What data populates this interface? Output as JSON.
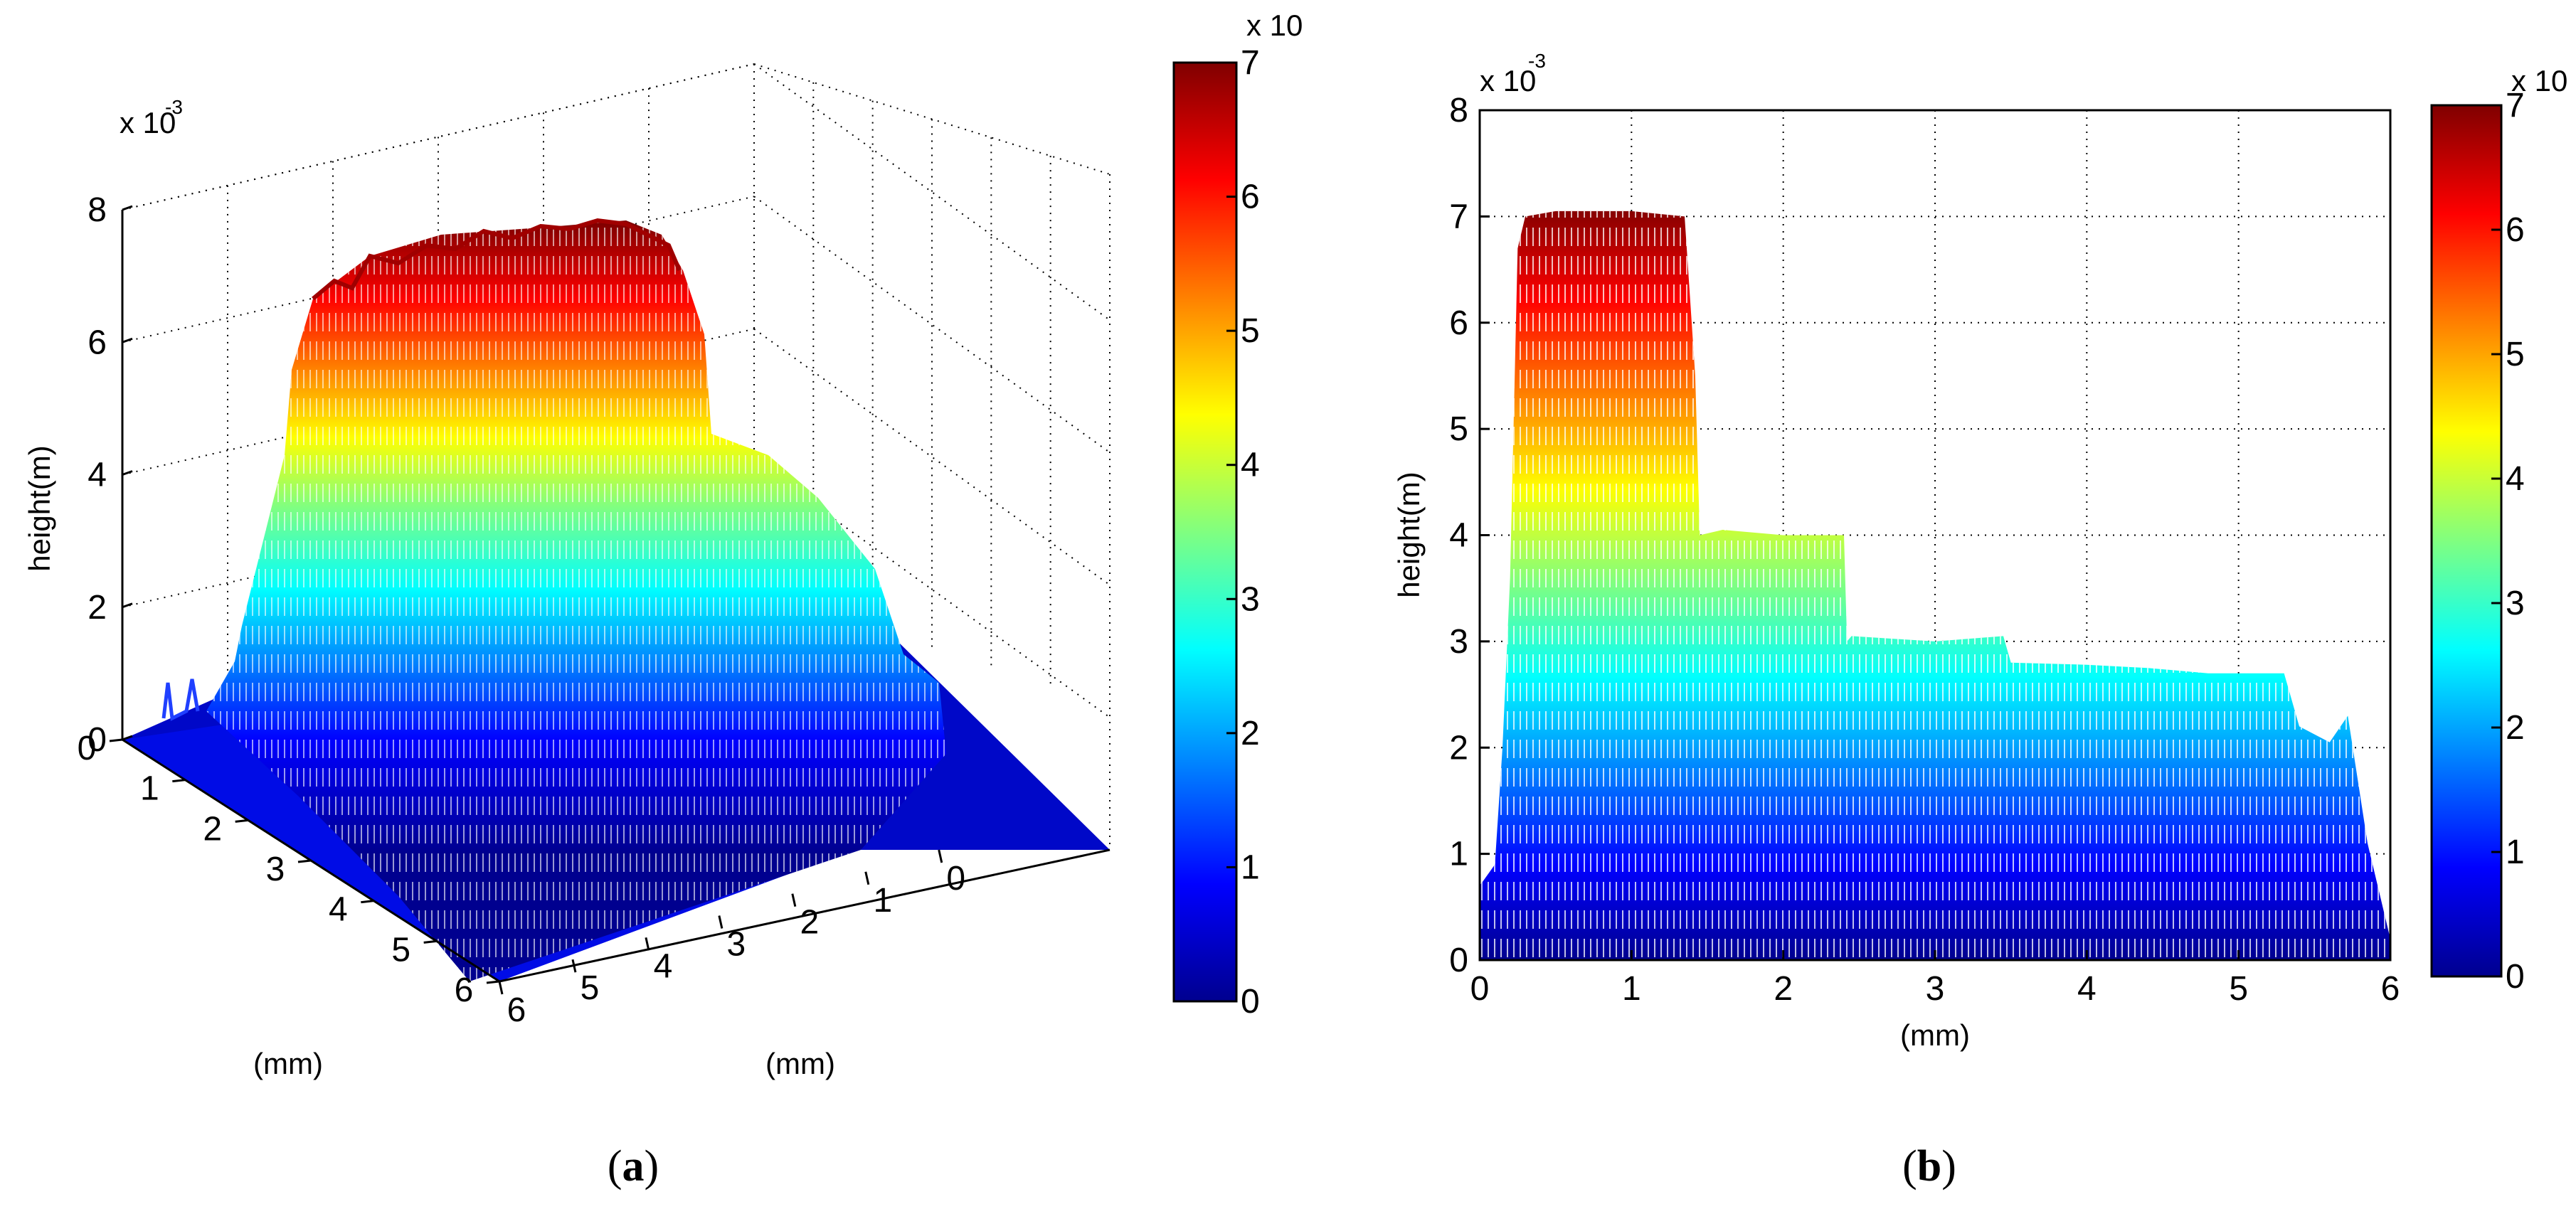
{
  "colors": {
    "jet": [
      "#00008f",
      "#0000ff",
      "#0080ff",
      "#00ffff",
      "#80ff80",
      "#ffff00",
      "#ff8000",
      "#ff0000",
      "#800000"
    ],
    "grid": "#000000",
    "background": "#ffffff"
  },
  "chart_data": [
    {
      "type": "surface3d",
      "panel_label": "a",
      "zlabel": "height(m)",
      "z_exponent_base": "x 10",
      "z_exponent_power": "-3",
      "zticks": [
        "0",
        "2",
        "4",
        "6",
        "8"
      ],
      "zlim": [
        0,
        8
      ],
      "x_axis": {
        "label": "(mm)",
        "ticks": [
          "0",
          "1",
          "2",
          "3",
          "4",
          "5",
          "6"
        ],
        "lim": [
          0,
          6
        ]
      },
      "y_axis": {
        "label": "(mm)",
        "ticks": [
          "0",
          "1",
          "2",
          "3",
          "4",
          "5",
          "6"
        ],
        "lim": [
          0,
          6
        ]
      },
      "plateaus": [
        {
          "height": 7.0,
          "x_range": [
            0.3,
            1.4
          ]
        },
        {
          "height": 4.0,
          "x_range": [
            1.4,
            2.4
          ]
        },
        {
          "height": 3.0,
          "x_range": [
            2.4,
            5.7
          ]
        }
      ],
      "grid": true,
      "colorbar": {
        "ticks": [
          "0",
          "1",
          "2",
          "3",
          "4",
          "5",
          "6",
          "7"
        ],
        "lim": [
          0,
          7
        ],
        "exponent_label": "x 10"
      }
    },
    {
      "type": "area",
      "panel_label": "b",
      "ylabel": "height(m)",
      "xlabel": "(mm)",
      "y_exponent_base": "x 10",
      "y_exponent_power": "-3",
      "xticks": [
        "0",
        "1",
        "2",
        "3",
        "4",
        "5",
        "6"
      ],
      "yticks": [
        "0",
        "1",
        "2",
        "3",
        "4",
        "5",
        "6",
        "7",
        "8"
      ],
      "xlim": [
        0,
        6
      ],
      "ylim": [
        0,
        8
      ],
      "grid": true,
      "profile": {
        "x": [
          0.0,
          0.1,
          0.15,
          0.2,
          0.25,
          0.3,
          0.5,
          1.0,
          1.35,
          1.42,
          1.45,
          1.6,
          2.0,
          2.4,
          2.42,
          2.45,
          3.0,
          3.45,
          3.5,
          4.0,
          4.4,
          4.8,
          5.3,
          5.4,
          5.6,
          5.72,
          5.85,
          6.0
        ],
        "y": [
          0.7,
          0.9,
          2.0,
          3.6,
          6.7,
          7.0,
          7.05,
          7.05,
          7.0,
          5.5,
          4.0,
          4.05,
          4.0,
          4.0,
          3.0,
          3.05,
          3.0,
          3.05,
          2.8,
          2.78,
          2.75,
          2.7,
          2.7,
          2.2,
          2.05,
          2.3,
          1.1,
          0.2
        ]
      },
      "colorbar": {
        "ticks": [
          "0",
          "1",
          "2",
          "3",
          "4",
          "5",
          "6",
          "7"
        ],
        "lim": [
          0,
          7
        ],
        "exponent_label": "x 10"
      }
    }
  ]
}
